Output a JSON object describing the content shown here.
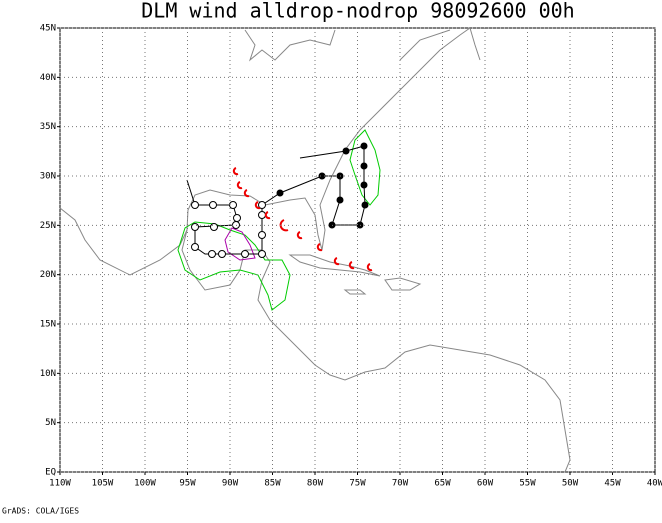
{
  "map": {
    "title": "DLM wind alldrop-nodrop 98092600 00h",
    "lonlim": [
      -110,
      -40
    ],
    "latlim": [
      0,
      45
    ],
    "lon_ticks": [
      {
        "value": -110,
        "label": "110W"
      },
      {
        "value": -105,
        "label": "105W"
      },
      {
        "value": -100,
        "label": "100W"
      },
      {
        "value": -95,
        "label": "95W"
      },
      {
        "value": -90,
        "label": "90W"
      },
      {
        "value": -85,
        "label": "85W"
      },
      {
        "value": -80,
        "label": "80W"
      },
      {
        "value": -75,
        "label": "75W"
      },
      {
        "value": -70,
        "label": "70W"
      },
      {
        "value": -65,
        "label": "65W"
      },
      {
        "value": -60,
        "label": "60W"
      },
      {
        "value": -55,
        "label": "55W"
      },
      {
        "value": -50,
        "label": "50W"
      },
      {
        "value": -45,
        "label": "45W"
      },
      {
        "value": -40,
        "label": "40W"
      }
    ],
    "lat_ticks": [
      {
        "value": 0,
        "label": "EQ"
      },
      {
        "value": 5,
        "label": "5N"
      },
      {
        "value": 10,
        "label": "10N"
      },
      {
        "value": 15,
        "label": "15N"
      },
      {
        "value": 20,
        "label": "20N"
      },
      {
        "value": 25,
        "label": "25N"
      },
      {
        "value": 30,
        "label": "30N"
      },
      {
        "value": 35,
        "label": "35N"
      },
      {
        "value": 40,
        "label": "40N"
      },
      {
        "value": 45,
        "label": "45N"
      }
    ],
    "grid": true
  },
  "footer": "GrADS: COLA/IGES"
}
